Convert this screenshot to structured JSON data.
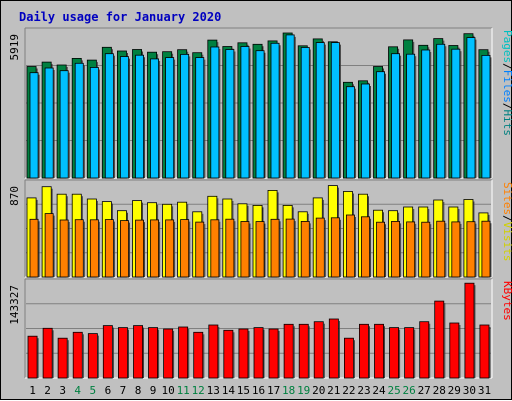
{
  "chart_data": {
    "type": "bar",
    "title": "Daily usage for January 2020",
    "categories": [
      "1",
      "2",
      "3",
      "4",
      "5",
      "6",
      "7",
      "8",
      "9",
      "10",
      "11",
      "12",
      "13",
      "14",
      "15",
      "16",
      "17",
      "18",
      "19",
      "20",
      "21",
      "22",
      "23",
      "24",
      "25",
      "26",
      "27",
      "28",
      "29",
      "30",
      "31"
    ],
    "weekend_days": [
      "4",
      "5",
      "11",
      "12",
      "18",
      "19",
      "25",
      "26"
    ],
    "panels": [
      {
        "name": "requests",
        "max_label": "5919",
        "ymax": 5919,
        "label_parts": [
          "Pages",
          "/",
          "Files",
          "/",
          "Hits"
        ],
        "series": [
          {
            "name": "Hits",
            "color": "#008040",
            "values": [
              4520,
              4700,
              4580,
              4850,
              4780,
              5300,
              5150,
              5210,
              5100,
              5120,
              5200,
              5080,
              5590,
              5330,
              5480,
              5420,
              5560,
              5880,
              5360,
              5640,
              5520,
              3880,
              3940,
              4520,
              5320,
              5600,
              5380,
              5650,
              5370,
              5850,
              5200
            ]
          },
          {
            "name": "Files",
            "color": "#00c0ff",
            "values": [
              4270,
              4460,
              4350,
              4650,
              4480,
              5040,
              4920,
              4980,
              4830,
              4880,
              5010,
              4880,
              5310,
              5210,
              5330,
              5160,
              5460,
              5800,
              5290,
              5490,
              5490,
              3700,
              3810,
              4310,
              5040,
              5020,
              5190,
              5420,
              5220,
              5690,
              4970
            ]
          },
          {
            "name": "Pages",
            "color": "#00e0ff",
            "values": []
          }
        ]
      },
      {
        "name": "visitors",
        "max_label": "870",
        "ymax": 870,
        "label_parts": [
          "Sites",
          "/",
          "Visits"
        ],
        "series": [
          {
            "name": "Visits",
            "color": "#ffff00",
            "values": [
              740,
              845,
              775,
              775,
              730,
              705,
              620,
              715,
              695,
              680,
              700,
              610,
              755,
              730,
              685,
              670,
              810,
              670,
              610,
              740,
              855,
              800,
              775,
              625,
              620,
              655,
              655,
              720,
              655,
              725,
              600
            ]
          },
          {
            "name": "Sites",
            "color": "#ff8000",
            "values": [
              540,
              593,
              533,
              536,
              535,
              537,
              528,
              532,
              534,
              534,
              537,
              514,
              535,
              541,
              519,
              518,
              540,
              542,
              520,
              551,
              554,
              580,
              563,
              513,
              520,
              515,
              513,
              522,
              515,
              517,
              522
            ]
          }
        ]
      },
      {
        "name": "kbytes",
        "max_label": "143327",
        "ymax": 143327,
        "label_parts": [
          "KBytes"
        ],
        "series": [
          {
            "name": "KBytes",
            "color": "#ff0000",
            "values": [
              63000,
              75000,
              60000,
              69000,
              67000,
              79000,
              76000,
              79000,
              76000,
              74000,
              77000,
              69000,
              80000,
              72000,
              74000,
              76000,
              74000,
              81000,
              81000,
              85000,
              89000,
              60000,
              81000,
              81000,
              76000,
              76000,
              85000,
              116000,
              83000,
              143000,
              80000
            ]
          }
        ]
      }
    ]
  }
}
